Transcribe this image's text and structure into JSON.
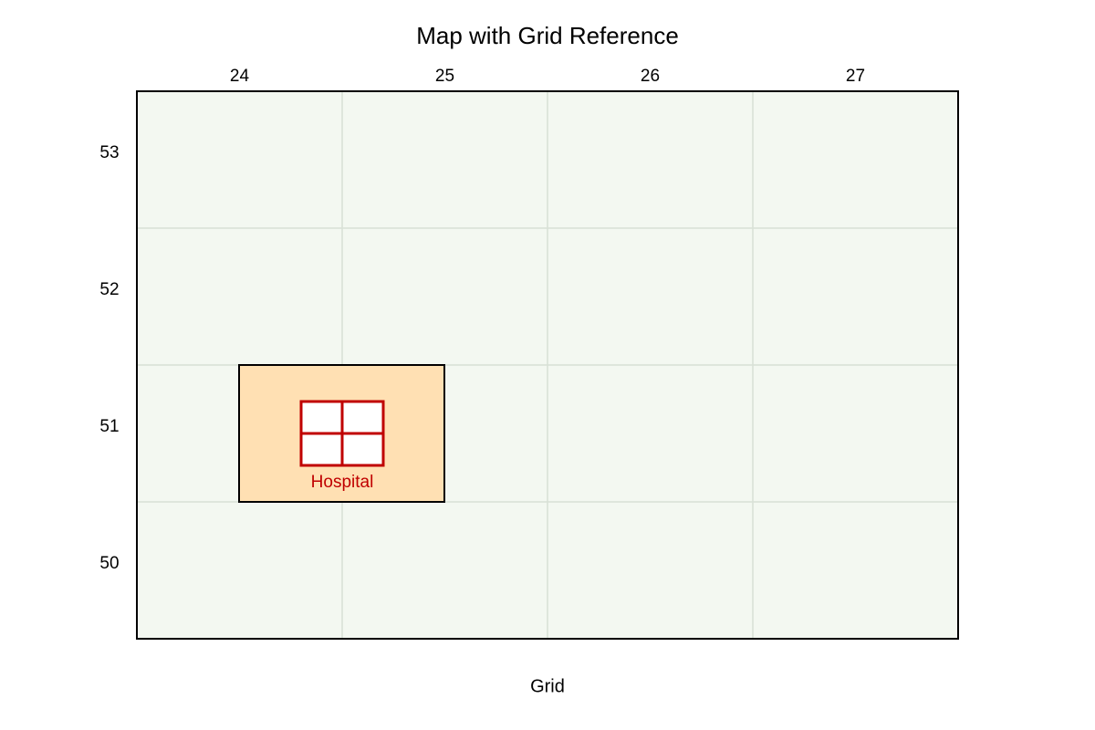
{
  "title": "Map with Grid Reference",
  "columns": [
    "24",
    "25",
    "26",
    "27"
  ],
  "rows": [
    "53",
    "52",
    "51",
    "50"
  ],
  "axis_label": "Grid",
  "features": [
    {
      "label": "Hospital"
    }
  ]
}
